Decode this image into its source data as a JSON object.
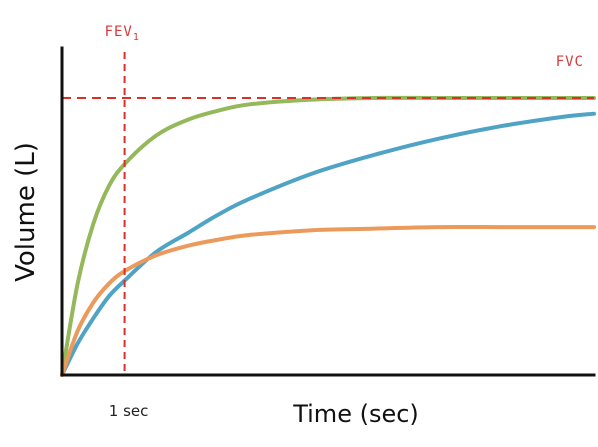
{
  "chart_data": {
    "type": "line",
    "title": "",
    "xlabel": "Time (sec)",
    "ylabel": "Volume (L)",
    "x_tick_labels": [
      {
        "x": 1,
        "label": "1 sec"
      }
    ],
    "xlim": [
      0,
      8.5
    ],
    "ylim": [
      0,
      1.0
    ],
    "grid": false,
    "reference_lines": [
      {
        "orientation": "vertical",
        "x": 1,
        "label": "FEV",
        "subscript": "1",
        "color": "#d9302c"
      },
      {
        "orientation": "horizontal",
        "y": 0.88,
        "label": "FVC",
        "color": "#d9302c"
      }
    ],
    "series": [
      {
        "color": "#94b85a",
        "x": [
          0,
          0.25,
          0.5,
          0.75,
          1,
          1.5,
          2,
          2.5,
          3,
          4,
          5,
          6,
          7,
          8,
          8.5
        ],
        "values": [
          0,
          0.29,
          0.48,
          0.6,
          0.67,
          0.76,
          0.81,
          0.84,
          0.86,
          0.875,
          0.88,
          0.88,
          0.88,
          0.88,
          0.88
        ]
      },
      {
        "color": "#4fa3c4",
        "x": [
          0,
          0.25,
          0.5,
          0.75,
          1,
          1.5,
          2,
          2.5,
          3,
          4,
          5,
          6,
          7,
          8,
          8.5
        ],
        "values": [
          0,
          0.1,
          0.18,
          0.25,
          0.3,
          0.39,
          0.45,
          0.51,
          0.56,
          0.64,
          0.7,
          0.75,
          0.79,
          0.82,
          0.83
        ]
      },
      {
        "color": "#ec9a5c",
        "x": [
          0,
          0.25,
          0.5,
          0.75,
          1,
          1.5,
          2,
          2.5,
          3,
          4,
          5,
          6,
          7,
          8,
          8.5
        ],
        "values": [
          0,
          0.14,
          0.23,
          0.29,
          0.33,
          0.38,
          0.41,
          0.43,
          0.445,
          0.46,
          0.465,
          0.47,
          0.47,
          0.47,
          0.47
        ]
      }
    ]
  }
}
